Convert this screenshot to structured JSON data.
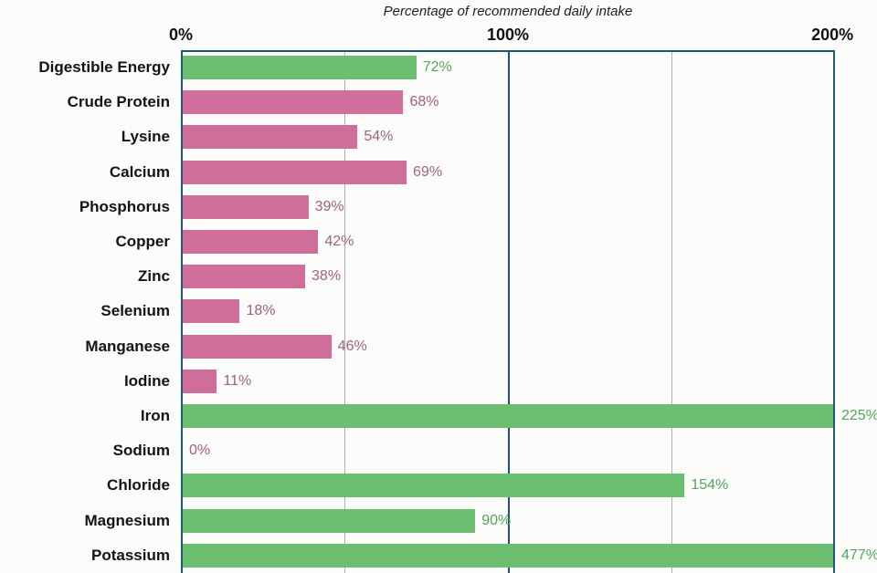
{
  "chart_data": {
    "type": "bar",
    "orientation": "horizontal",
    "title": "Percentage of recommended daily intake",
    "x_axis": {
      "ticks": [
        "0%",
        "100%",
        "200%"
      ],
      "range": [
        0,
        200
      ],
      "gridline_interval_pct": 50,
      "note": "bars above 200% are clipped at axis edge"
    },
    "grid": true,
    "legend": false,
    "categories": [
      "Digestible Energy",
      "Crude Protein",
      "Lysine",
      "Calcium",
      "Phosphorus",
      "Copper",
      "Zinc",
      "Selenium",
      "Manganese",
      "Iodine",
      "Iron",
      "Sodium",
      "Chloride",
      "Magnesium",
      "Potassium"
    ],
    "values": [
      72,
      68,
      54,
      69,
      39,
      42,
      38,
      18,
      46,
      11,
      225,
      0,
      154,
      90,
      477
    ],
    "value_labels": [
      "72%",
      "68%",
      "54%",
      "69%",
      "39%",
      "42%",
      "38%",
      "18%",
      "46%",
      "11%",
      "225%",
      "0%",
      "154%",
      "90%",
      "477%"
    ],
    "bar_color_keys": [
      "green",
      "pink",
      "pink",
      "pink",
      "pink",
      "pink",
      "pink",
      "pink",
      "pink",
      "pink",
      "green",
      "pink",
      "green",
      "green",
      "green"
    ],
    "colors": {
      "green": "#6cbe70",
      "pink": "#cf6e9b",
      "green_text": "#55a45c",
      "pink_text": "#a2617f",
      "grid_major": "#20507e",
      "grid_minor": "#a7b4bd",
      "frame_border": "#1d5a76",
      "category_text": "#141414",
      "tick_text": "#101010"
    }
  }
}
